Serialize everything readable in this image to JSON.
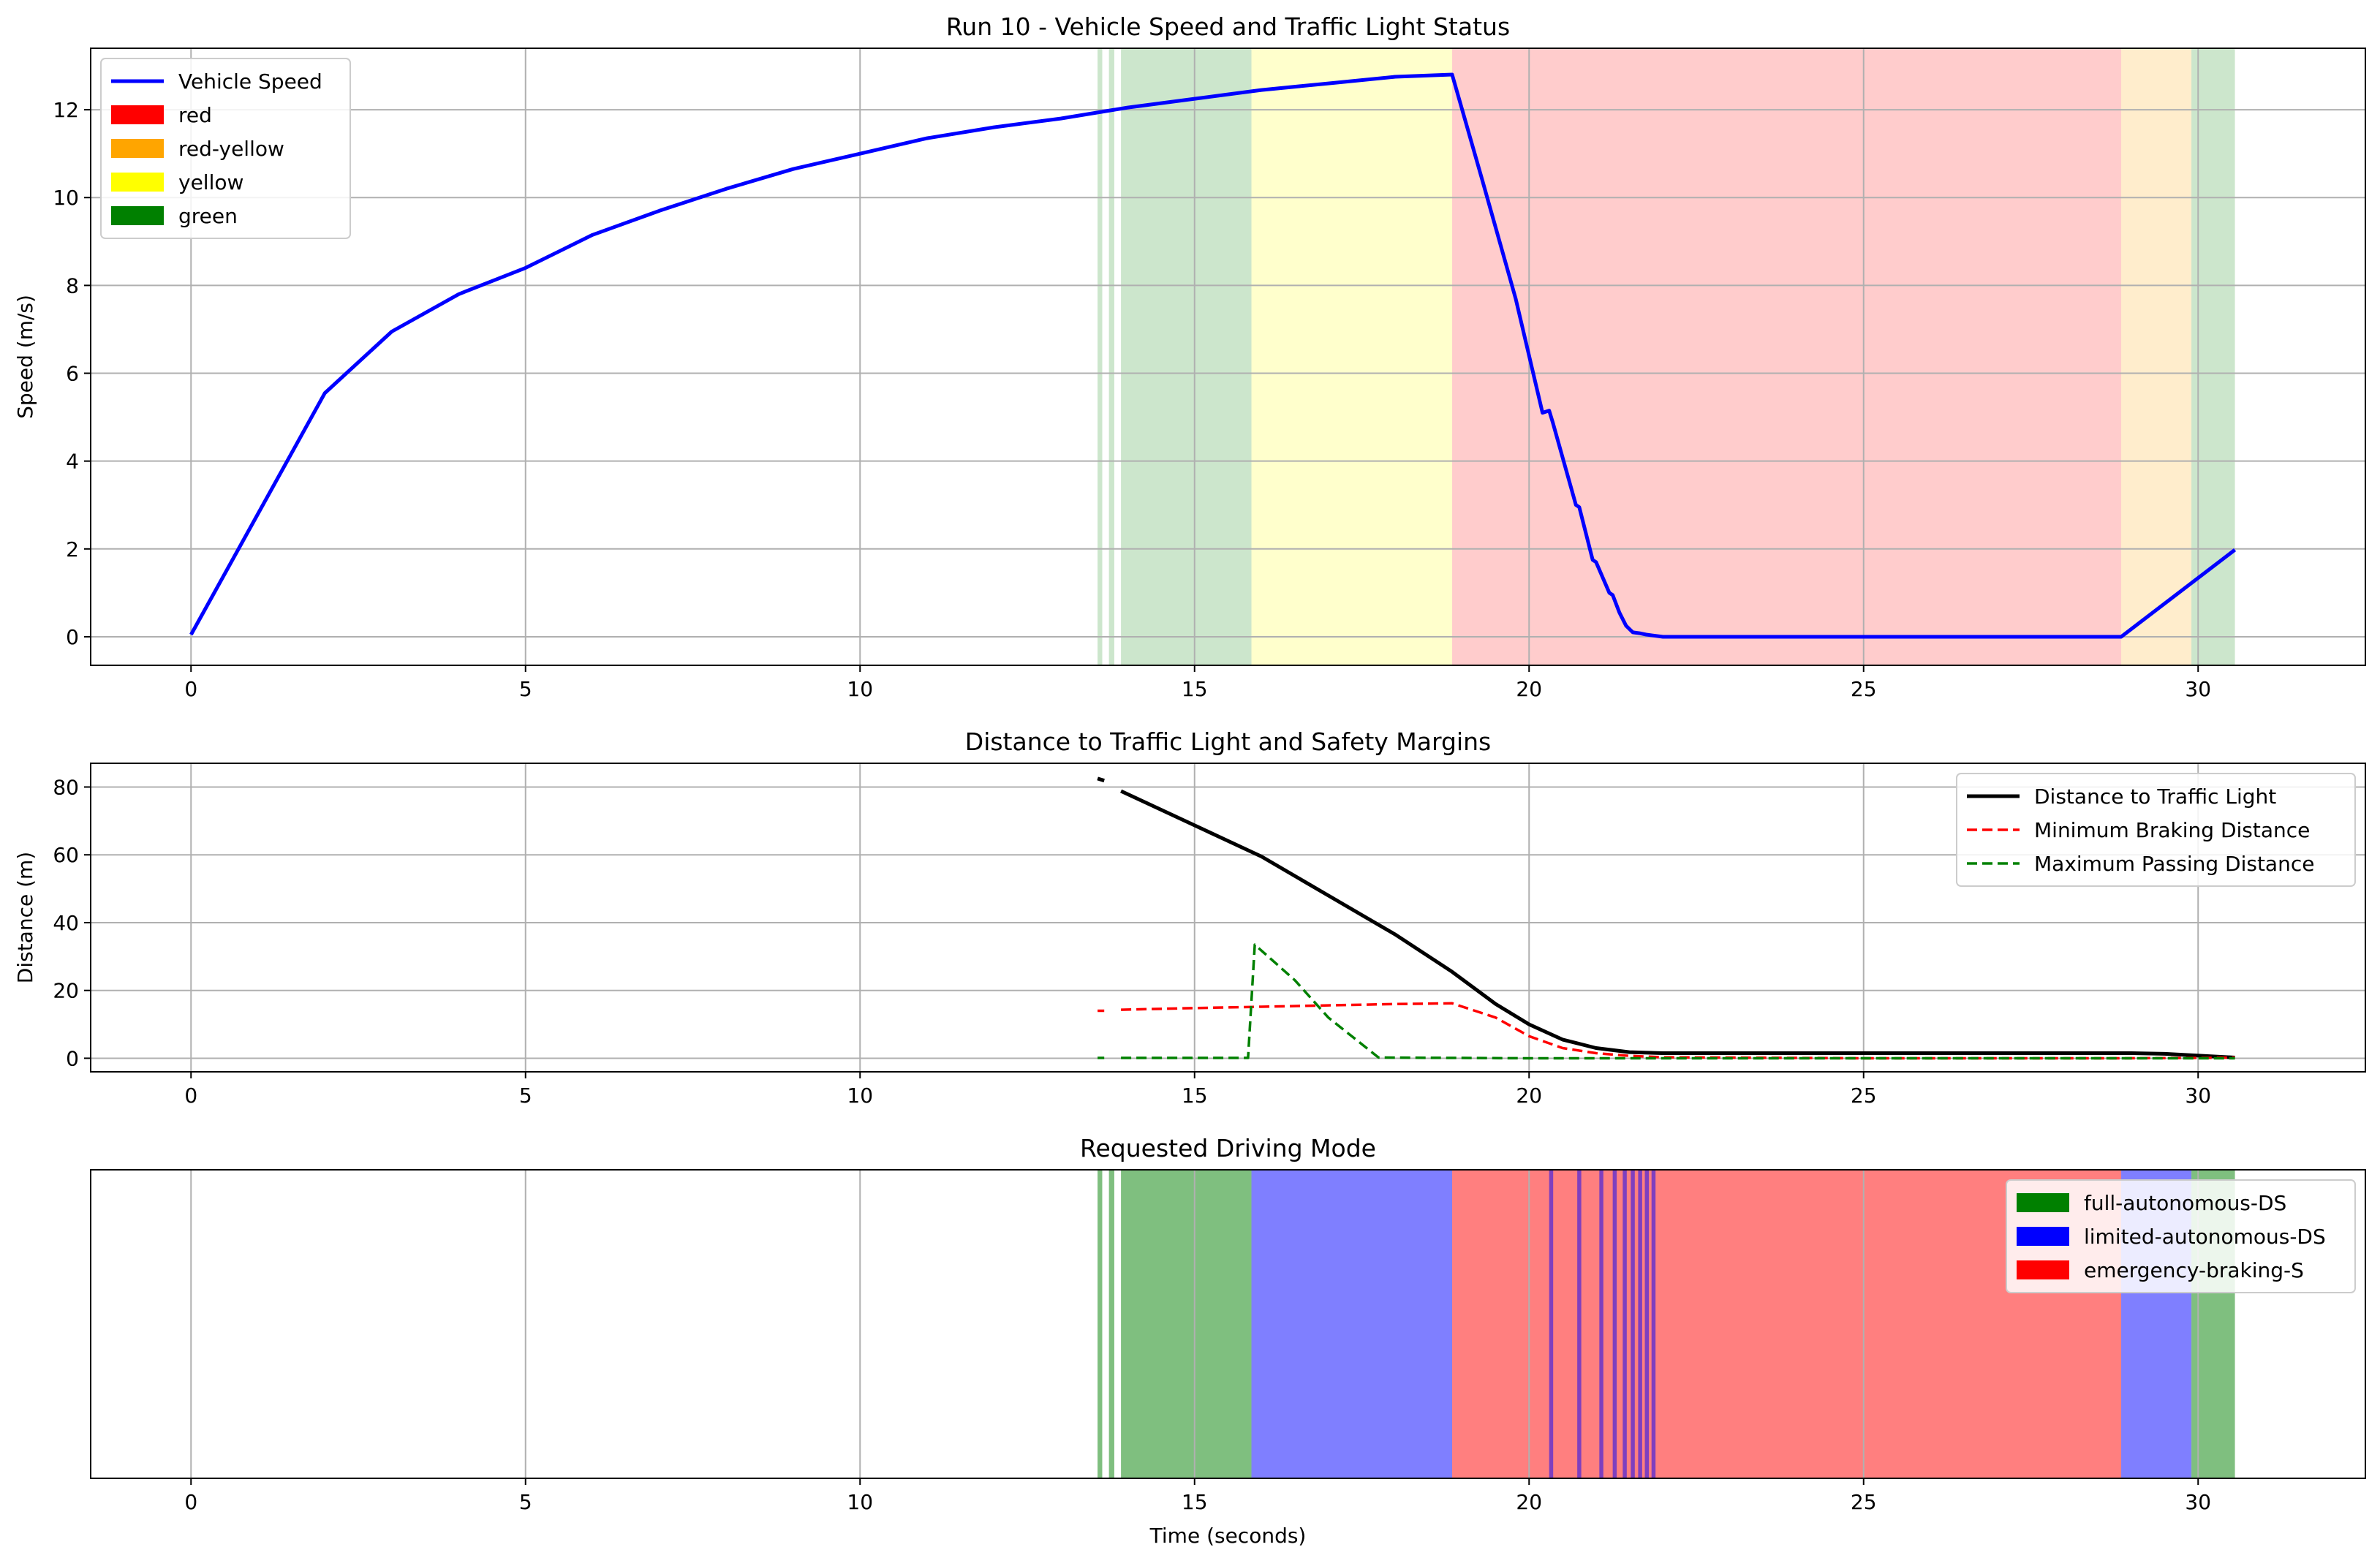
{
  "chart_data": [
    {
      "type": "line",
      "title": "Run 10 - Vehicle Speed and Traffic Light Status",
      "xlabel": "",
      "ylabel": "Speed (m/s)",
      "xlim": [
        -1.5,
        32.5
      ],
      "ylim": [
        -0.65,
        13.4
      ],
      "xticks": [
        0,
        5,
        10,
        15,
        20,
        25,
        30
      ],
      "yticks": [
        0,
        2,
        4,
        6,
        8,
        10,
        12
      ],
      "grid": true,
      "legend_position": "upper-left",
      "series": [
        {
          "name": "Vehicle Speed",
          "color": "#0000ff",
          "style": "solid",
          "x": [
            0,
            2.0,
            3.0,
            4.0,
            5.0,
            6.0,
            7.0,
            8.0,
            9.0,
            10.0,
            11.0,
            12.0,
            13.0,
            14.0,
            15.0,
            16.0,
            17.0,
            18.0,
            18.85,
            19.3,
            19.8,
            20.2,
            20.3,
            20.35,
            20.7,
            20.75,
            20.95,
            21.0,
            21.2,
            21.25,
            21.35,
            21.45,
            21.55,
            21.65,
            21.75,
            21.85,
            22.0,
            25.0,
            28.85,
            30.55
          ],
          "y": [
            0.05,
            5.55,
            6.95,
            7.8,
            8.4,
            9.15,
            9.7,
            10.2,
            10.65,
            11.0,
            11.35,
            11.6,
            11.8,
            12.05,
            12.25,
            12.45,
            12.6,
            12.75,
            12.8,
            10.4,
            7.7,
            5.1,
            5.15,
            4.9,
            3.0,
            2.95,
            1.75,
            1.7,
            1.0,
            0.95,
            0.55,
            0.25,
            0.1,
            0.08,
            0.05,
            0.03,
            0.0,
            0.0,
            0.0,
            1.98
          ]
        }
      ],
      "legend_entries": [
        "Vehicle Speed",
        "red",
        "red-yellow",
        "yellow",
        "green"
      ],
      "patch_colors": {
        "red": "#ff0000",
        "red-yellow": "#ffa500",
        "yellow": "#ffff00",
        "green": "#008000"
      },
      "spans": [
        {
          "state": "green",
          "x0": 13.55,
          "x1": 13.62
        },
        {
          "state": "green",
          "x0": 13.72,
          "x1": 13.8
        },
        {
          "state": "green",
          "x0": 13.9,
          "x1": 15.85
        },
        {
          "state": "yellow",
          "x0": 15.85,
          "x1": 18.85
        },
        {
          "state": "red",
          "x0": 18.85,
          "x1": 28.85
        },
        {
          "state": "red-yellow",
          "x0": 28.85,
          "x1": 29.9
        },
        {
          "state": "green",
          "x0": 29.9,
          "x1": 30.55
        }
      ]
    },
    {
      "type": "line",
      "title": "Distance to Traffic Light and Safety Margins",
      "xlabel": "",
      "ylabel": "Distance (m)",
      "xlim": [
        -1.5,
        32.5
      ],
      "ylim": [
        -4.0,
        87.0
      ],
      "xticks": [
        0,
        5,
        10,
        15,
        20,
        25,
        30
      ],
      "yticks": [
        0,
        20,
        40,
        60,
        80
      ],
      "grid": true,
      "legend_position": "upper-right",
      "series": [
        {
          "name": "Distance to Traffic Light",
          "color": "#000000",
          "style": "solid",
          "segments": [
            {
              "x": [
                13.55,
                13.65
              ],
              "y": [
                82.5,
                81.9
              ]
            },
            {
              "x": [
                13.9,
                16.0,
                17.0,
                18.0,
                18.85,
                19.5,
                20.0,
                20.5,
                21.0,
                21.5,
                22.0,
                25.0,
                29.0,
                29.5,
                30.55
              ],
              "y": [
                78.8,
                59.5,
                48.0,
                36.5,
                25.5,
                16.0,
                10.0,
                5.5,
                3.0,
                1.8,
                1.5,
                1.5,
                1.5,
                1.3,
                0.2
              ]
            }
          ]
        },
        {
          "name": "Minimum Braking Distance",
          "color": "#ff0000",
          "style": "dashed",
          "segments": [
            {
              "x": [
                13.55,
                13.65
              ],
              "y": [
                14.0,
                14.0
              ]
            },
            {
              "x": [
                13.9,
                15.0,
                16.0,
                17.0,
                18.0,
                18.85,
                19.5,
                20.0,
                20.5,
                21.0,
                21.5,
                22.0,
                25.0,
                28.85,
                30.0,
                30.55
              ],
              "y": [
                14.3,
                14.8,
                15.2,
                15.6,
                16.0,
                16.2,
                12.0,
                6.5,
                3.0,
                1.5,
                0.7,
                0.3,
                0.0,
                0.0,
                0.1,
                0.2
              ]
            }
          ]
        },
        {
          "name": "Maximum Passing Distance",
          "color": "#008000",
          "style": "dashed",
          "segments": [
            {
              "x": [
                13.55,
                13.65
              ],
              "y": [
                0.1,
                0.1
              ]
            },
            {
              "x": [
                13.9,
                15.8,
                15.9,
                16.5,
                17.0,
                17.75,
                20.0,
                25.0,
                30.55
              ],
              "y": [
                0.1,
                0.1,
                33.5,
                23.0,
                12.0,
                0.2,
                0.0,
                0.0,
                0.0
              ]
            }
          ]
        }
      ]
    },
    {
      "type": "area",
      "title": "Requested Driving Mode",
      "xlabel": "Time (seconds)",
      "ylabel": "",
      "xlim": [
        -1.5,
        32.5
      ],
      "xticks": [
        0,
        5,
        10,
        15,
        20,
        25,
        30
      ],
      "grid": true,
      "legend_position": "upper-right",
      "legend_entries": [
        "full-autonomous-DS",
        "limited-autonomous-DS",
        "emergency-braking-S"
      ],
      "patch_colors": {
        "full-autonomous-DS": "#008000",
        "limited-autonomous-DS": "#0000ff",
        "emergency-braking-S": "#ff0000"
      },
      "spans": [
        {
          "mode": "full-autonomous-DS",
          "x0": 13.55,
          "x1": 13.62
        },
        {
          "mode": "full-autonomous-DS",
          "x0": 13.72,
          "x1": 13.8
        },
        {
          "mode": "full-autonomous-DS",
          "x0": 13.9,
          "x1": 15.85
        },
        {
          "mode": "limited-autonomous-DS",
          "x0": 15.85,
          "x1": 18.85
        },
        {
          "mode": "emergency-braking-S",
          "x0": 18.85,
          "x1": 28.85
        },
        {
          "mode": "limited-autonomous-DS",
          "x0": 20.3,
          "x1": 20.36
        },
        {
          "mode": "limited-autonomous-DS",
          "x0": 20.72,
          "x1": 20.78
        },
        {
          "mode": "limited-autonomous-DS",
          "x0": 21.05,
          "x1": 21.11
        },
        {
          "mode": "limited-autonomous-DS",
          "x0": 21.25,
          "x1": 21.31
        },
        {
          "mode": "limited-autonomous-DS",
          "x0": 21.4,
          "x1": 21.46
        },
        {
          "mode": "limited-autonomous-DS",
          "x0": 21.52,
          "x1": 21.58
        },
        {
          "mode": "limited-autonomous-DS",
          "x0": 21.63,
          "x1": 21.69
        },
        {
          "mode": "limited-autonomous-DS",
          "x0": 21.73,
          "x1": 21.79
        },
        {
          "mode": "limited-autonomous-DS",
          "x0": 21.83,
          "x1": 21.89
        },
        {
          "mode": "limited-autonomous-DS",
          "x0": 28.85,
          "x1": 29.9
        },
        {
          "mode": "full-autonomous-DS",
          "x0": 29.9,
          "x1": 30.55
        }
      ]
    }
  ]
}
